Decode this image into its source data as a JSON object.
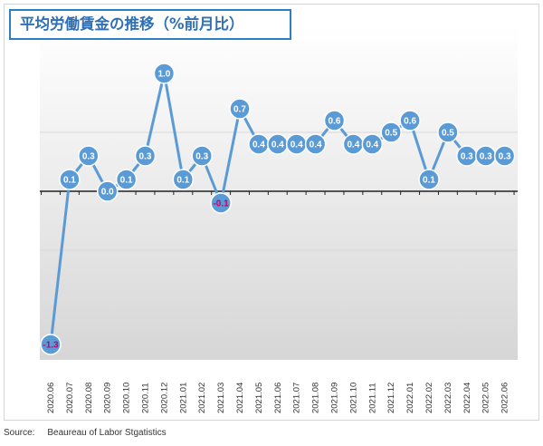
{
  "header": {
    "title": "平均労働賃金の推移（%前月比）"
  },
  "source": {
    "label": "Source:",
    "text": "Beaureau of Labor Stgatistics"
  },
  "chart_data": {
    "type": "line",
    "title": "平均労働賃金の推移（%前月比）",
    "xlabel": "",
    "ylabel": "",
    "categories": [
      "2020.06",
      "2020.07",
      "2020.08",
      "2020.09",
      "2020.10",
      "2020.11",
      "2020.12",
      "2021.01",
      "2021.02",
      "2021.03",
      "2021.04",
      "2021.05",
      "2021.06",
      "2021.07",
      "2021.08",
      "2021.09",
      "2021.10",
      "2021.11",
      "2021.12",
      "2022.01",
      "2022.02",
      "2022.03",
      "2022.04",
      "2022.05",
      "2022.06"
    ],
    "series": [
      {
        "values": [
          -1.3,
          0.1,
          0.3,
          0.0,
          0.1,
          0.3,
          1.0,
          0.1,
          0.3,
          -0.1,
          0.7,
          0.4,
          0.4,
          0.4,
          0.4,
          0.6,
          0.4,
          0.4,
          0.5,
          0.6,
          0.1,
          0.5,
          0.3,
          0.3,
          0.3
        ],
        "labels": [
          "-1.3",
          "0.1",
          "0.3",
          "0.0",
          "0.1",
          "0.3",
          "1.0",
          "0.1",
          "0.3",
          "-0.1",
          "0.7",
          "0.4",
          "0.4",
          "0.4",
          "0.4",
          "0.6",
          "0.4",
          "0.4",
          "0.5",
          "0.6",
          "0.1",
          "0.5",
          "0.3",
          "0.3",
          "0.3"
        ]
      }
    ],
    "ylim": [
      -1.3,
      1.0
    ],
    "grid": "horizontal",
    "legend": "none",
    "colors": {
      "line": "#5b9bd5",
      "marker": "#5b9bd5",
      "marker_border": "#ffffff",
      "label": "#ffffff",
      "negative_label": "#c0006a",
      "zero_line": "#222222",
      "grid": "#d9d9d9",
      "plot_bg_top": "#ffffff",
      "plot_bg_bottom": "#d6d6d6"
    }
  }
}
